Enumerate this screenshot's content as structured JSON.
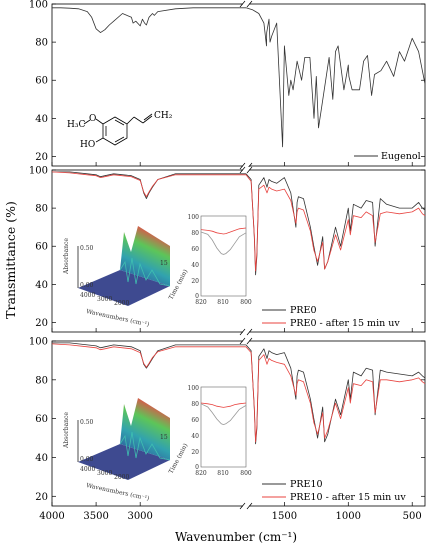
{
  "chart_data": {
    "type": "line",
    "xlabel": "Wavenumber (cm⁻¹)",
    "ylabel": "Transmittance (%)",
    "x_axis": {
      "direction": "descending",
      "broken": true,
      "segment_left": [
        4000,
        1800
      ],
      "segment_right": [
        1800,
        400
      ],
      "tick_labels": [
        "4000",
        "3500",
        "3000",
        "1500",
        "1000",
        "500"
      ]
    },
    "panels": [
      {
        "id": "eugenol",
        "ylim": [
          15,
          100
        ],
        "yticks": [
          20,
          40,
          60,
          80,
          100
        ],
        "ytick_labels": [
          "20",
          "40",
          "60",
          "80",
          "100"
        ],
        "structure_labels": {
          "methoxy": "H₃C",
          "o_atom": "O",
          "vinyl": "CH₂",
          "hydroxyl": "HO"
        },
        "series": [
          {
            "name": "Eugenol",
            "color": "#333333",
            "x": [
              4000,
              3900,
              3800,
              3700,
              3600,
              3550,
              3500,
              3450,
              3400,
              3350,
              3300,
              3200,
              3100,
              3080,
              3050,
              3000,
              2975,
              2950,
              2930,
              2900,
              2860,
              2840,
              2800,
              2600,
              2400,
              2200,
              2000,
              1900,
              1800,
              1750,
              1700,
              1660,
              1640,
              1638,
              1620,
              1612,
              1600,
              1560,
              1514,
              1500,
              1465,
              1450,
              1432,
              1400,
              1365,
              1340,
              1300,
              1268,
              1250,
              1233,
              1210,
              1150,
              1121,
              1100,
              1080,
              1034,
              1000,
              995,
              970,
              912,
              880,
              850,
              818,
              795,
              745,
              700,
              645,
              600,
              560,
              500,
              450,
              400
            ],
            "y": [
              98,
              98,
              97.8,
              97.5,
              96,
              93,
              87,
              85,
              86.5,
              89,
              91,
              95,
              93,
              90,
              91,
              88.5,
              92,
              90,
              89,
              93,
              95,
              94,
              96,
              97.5,
              98,
              98,
              98,
              98,
              98,
              97,
              95,
              90,
              78,
              85,
              92,
              80,
              83,
              90,
              25,
              78,
              52,
              60,
              55,
              70,
              60,
              72,
              72,
              40,
              62,
              35,
              45,
              72,
              50,
              75,
              78,
              55,
              68,
              62,
              55,
              55,
              70,
              73,
              52,
              63,
              65,
              70,
              62,
              75,
              70,
              82,
              75,
              58
            ]
          }
        ]
      },
      {
        "id": "pre0",
        "ylim": [
          15,
          100
        ],
        "yticks": [
          20,
          40,
          60,
          80,
          100
        ],
        "ytick_labels": [
          "20",
          "40",
          "60",
          "80",
          "100"
        ],
        "series": [
          {
            "name": "PRE0",
            "color": "#333333",
            "x": [
              4000,
              3800,
              3600,
              3500,
              3450,
              3400,
              3300,
              3100,
              3000,
              2960,
              2930,
              2900,
              2860,
              2800,
              2600,
              2400,
              2000,
              1800,
              1760,
              1735,
              1725,
              1715,
              1700,
              1660,
              1636,
              1620,
              1600,
              1560,
              1500,
              1450,
              1410,
              1400,
              1390,
              1350,
              1296,
              1270,
              1240,
              1200,
              1185,
              1160,
              1100,
              1060,
              1000,
              984,
              960,
              900,
              860,
              810,
              790,
              750,
              700,
              600,
              500,
              450,
              420,
              400
            ],
            "y": [
              99,
              99,
              98,
              97.5,
              96.5,
              97,
              98,
              97,
              95,
              88,
              85,
              88,
              91,
              95,
              98,
              98,
              98,
              98,
              95,
              65,
              45,
              55,
              92,
              96,
              91,
              95,
              94,
              93,
              96,
              88,
              70,
              83,
              86,
              85,
              70,
              60,
              50,
              65,
              48,
              52,
              70,
              60,
              80,
              68,
              82,
              80,
              84,
              83,
              60,
              85,
              82,
              80,
              80,
              83,
              80,
              79
            ]
          },
          {
            "name": "PRE0 - after 15 min uv",
            "color": "#e8433f",
            "x": [
              4000,
              3800,
              3600,
              3500,
              3450,
              3400,
              3300,
              3100,
              3000,
              2960,
              2930,
              2900,
              2860,
              2800,
              2600,
              2400,
              2000,
              1800,
              1760,
              1735,
              1725,
              1715,
              1700,
              1660,
              1636,
              1620,
              1600,
              1560,
              1500,
              1450,
              1410,
              1400,
              1390,
              1350,
              1296,
              1270,
              1240,
              1200,
              1185,
              1160,
              1100,
              1060,
              1000,
              984,
              960,
              900,
              860,
              810,
              790,
              750,
              700,
              600,
              500,
              450,
              420,
              400
            ],
            "y": [
              99,
              98.5,
              97.5,
              97,
              96,
              96.5,
              97.5,
              96.5,
              94.5,
              88.5,
              86,
              88.5,
              91.5,
              95,
              97.5,
              97.5,
              97.5,
              97.5,
              94,
              66,
              47,
              57,
              90,
              92,
              88,
              91,
              90,
              89,
              90,
              84,
              72,
              78,
              80,
              79,
              68,
              58,
              52,
              62,
              48,
              52,
              66,
              58,
              74,
              66,
              76,
              75,
              78,
              76,
              62,
              77,
              78,
              77,
              78,
              80,
              77,
              76
            ]
          }
        ],
        "inset": {
          "xlim": [
            820,
            800
          ],
          "ylim": [
            0,
            100
          ],
          "xtick_labels": [
            "820",
            "810",
            "800"
          ],
          "ytick_labels": [
            "0",
            "20",
            "40",
            "60",
            "80",
            "100"
          ],
          "series": [
            {
              "color": "#999999",
              "x": [
                820,
                817,
                815,
                813,
                811,
                810,
                809,
                807,
                805,
                803,
                800
              ],
              "y": [
                80,
                77,
                70,
                60,
                53,
                52,
                53,
                58,
                66,
                74,
                79
              ]
            },
            {
              "color": "#e8433f",
              "x": [
                820,
                817,
                815,
                813,
                811,
                810,
                809,
                807,
                805,
                803,
                800
              ],
              "y": [
                83,
                82,
                81,
                79,
                78,
                77.5,
                78,
                80,
                82,
                84,
                85
              ]
            }
          ]
        },
        "surface_inset": {
          "zlabel": "Absorbance",
          "xlabel": "Wavenumbers (cm⁻¹)",
          "ylabel": "Time (min)",
          "ztick_labels": [
            "0.00",
            "0.05",
            "0.10",
            "0.15",
            "0.20",
            "0.25",
            "0.30",
            "0.35",
            "0.40",
            "0.45",
            "0.50"
          ],
          "xtick_labels": [
            "4000",
            "3000",
            "2000",
            "1000"
          ],
          "ytick_labels": [
            "0",
            "5",
            "10",
            "15"
          ]
        }
      },
      {
        "id": "pre10",
        "ylim": [
          15,
          100
        ],
        "yticks": [
          20,
          40,
          60,
          80,
          100
        ],
        "ytick_labels": [
          "20",
          "40",
          "60",
          "80",
          "100"
        ],
        "series": [
          {
            "name": "PRE10",
            "color": "#333333",
            "x": [
              4000,
              3800,
              3600,
              3500,
              3450,
              3400,
              3300,
              3100,
              3000,
              2960,
              2930,
              2900,
              2860,
              2800,
              2600,
              2400,
              2000,
              1800,
              1760,
              1735,
              1725,
              1715,
              1700,
              1660,
              1636,
              1620,
              1600,
              1560,
              1500,
              1450,
              1410,
              1400,
              1390,
              1350,
              1296,
              1270,
              1240,
              1200,
              1185,
              1160,
              1100,
              1060,
              1000,
              984,
              960,
              900,
              860,
              810,
              790,
              750,
              700,
              600,
              500,
              450,
              420,
              400
            ],
            "y": [
              99,
              99,
              98,
              97.5,
              96.5,
              97,
              98,
              97,
              95,
              88,
              86,
              88,
              91,
              95,
              98,
              98,
              98,
              98,
              95,
              65,
              47,
              55,
              92,
              96,
              91,
              95,
              94,
              93,
              94,
              86,
              70,
              82,
              85,
              84,
              70,
              60,
              50,
              66,
              48,
              52,
              70,
              62,
              80,
              70,
              84,
              82,
              86,
              85,
              62,
              85,
              84,
              83,
              82,
              84,
              82,
              81
            ]
          },
          {
            "name": "PRE10 - after 15 min uv",
            "color": "#e8433f",
            "x": [
              4000,
              3800,
              3600,
              3500,
              3450,
              3400,
              3300,
              3100,
              3000,
              2960,
              2930,
              2900,
              2860,
              2800,
              2600,
              2400,
              2000,
              1800,
              1760,
              1735,
              1725,
              1715,
              1700,
              1660,
              1636,
              1620,
              1600,
              1560,
              1500,
              1450,
              1410,
              1400,
              1390,
              1350,
              1296,
              1270,
              1240,
              1200,
              1185,
              1160,
              1100,
              1060,
              1000,
              984,
              960,
              900,
              860,
              810,
              790,
              750,
              700,
              600,
              500,
              450,
              420,
              400
            ],
            "y": [
              98.5,
              98,
              97,
              96.5,
              95.5,
              96,
              97,
              96,
              94,
              88.5,
              86.5,
              88.5,
              91.5,
              94.5,
              97,
              97,
              97,
              97,
              94,
              66,
              48,
              57,
              90,
              93,
              88,
              91,
              90,
              89,
              88,
              82,
              72,
              78,
              80,
              79,
              68,
              58,
              52,
              63,
              50,
              54,
              68,
              60,
              76,
              68,
              78,
              77,
              80,
              79,
              63,
              80,
              80,
              79,
              80,
              81,
              79,
              78
            ]
          }
        ],
        "inset": {
          "xlim": [
            820,
            800
          ],
          "ylim": [
            0,
            100
          ],
          "xtick_labels": [
            "820",
            "810",
            "800"
          ],
          "ytick_labels": [
            "0",
            "20",
            "40",
            "60",
            "80",
            "100"
          ],
          "series": [
            {
              "color": "#999999",
              "x": [
                820,
                817,
                815,
                813,
                811,
                810,
                809,
                807,
                805,
                803,
                800
              ],
              "y": [
                79,
                75,
                68,
                60,
                54,
                53,
                54,
                58,
                65,
                72,
                77
              ]
            },
            {
              "color": "#e8433f",
              "x": [
                820,
                817,
                815,
                813,
                811,
                810,
                809,
                807,
                805,
                803,
                800
              ],
              "y": [
                80,
                79,
                78,
                76,
                75,
                74.5,
                75,
                76,
                78,
                79,
                80
              ]
            }
          ]
        },
        "surface_inset": {
          "zlabel": "Absorbance",
          "xlabel": "Wavenumbers (cm⁻¹)",
          "ylabel": "Time (min)",
          "ztick_labels": [
            "0.00",
            "0.05",
            "0.10",
            "0.15",
            "0.20",
            "0.25",
            "0.30",
            "0.35",
            "0.40",
            "0.45",
            "0.50"
          ],
          "xtick_labels": [
            "4000",
            "3000",
            "2000",
            "1000"
          ],
          "ytick_labels": [
            "0",
            "5",
            "10",
            "15"
          ]
        }
      }
    ]
  }
}
